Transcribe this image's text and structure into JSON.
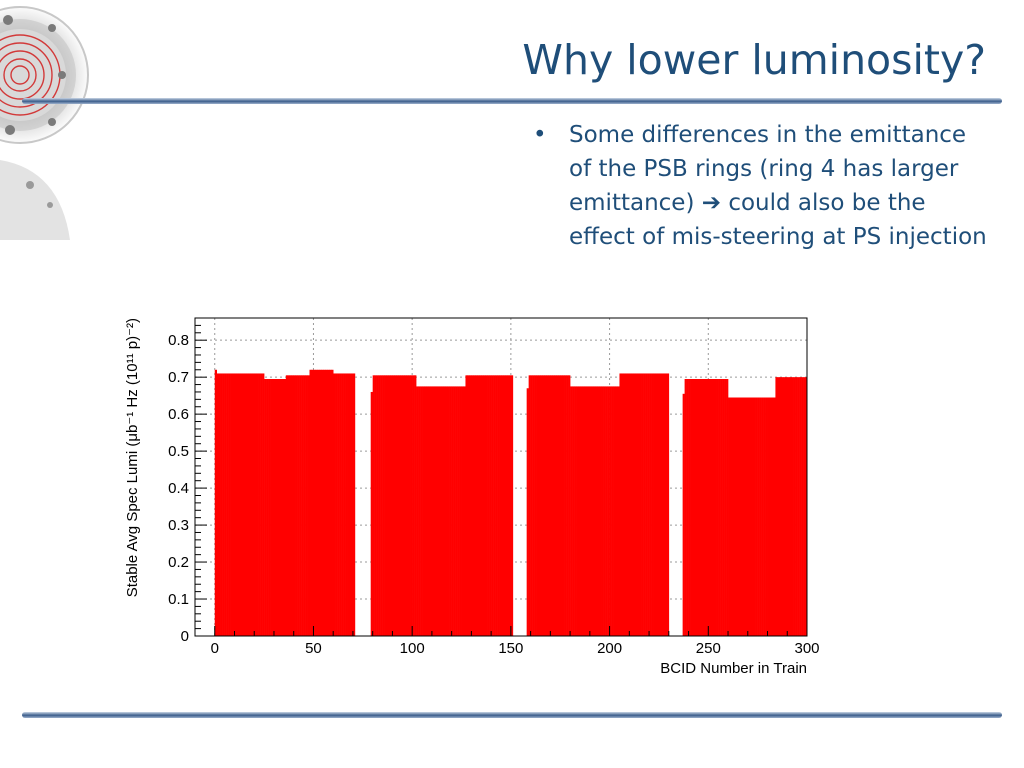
{
  "slide": {
    "title": "Why lower luminosity?",
    "bullets": [
      {
        "before_arrow": "Some differences in the emittance of the PSB rings (ring 4 has larger emittance) ",
        "arrow_icon": "right-arrow-icon",
        "after_arrow": " could also be the effect of mis-steering at PS injection"
      }
    ],
    "bullet_marker": "•",
    "arrow_glyph": "➔"
  },
  "colors": {
    "title": "#1f4e79",
    "bars": "#ff0000",
    "grid": "#9a9a9a"
  },
  "chart_data": {
    "type": "bar",
    "title": "",
    "xlabel": "BCID Number in Train",
    "ylabel": "Stable Avg Spec Lumi (μb⁻¹ Hz (10¹¹ p)⁻²)",
    "xlim": [
      -10,
      300
    ],
    "ylim": [
      0,
      0.86
    ],
    "xticks": [
      0,
      50,
      100,
      150,
      200,
      250,
      300
    ],
    "yticks": [
      0,
      0.1,
      0.2,
      0.3,
      0.4,
      0.5,
      0.6,
      0.7,
      0.8
    ],
    "grid": true,
    "x_bin_width": 1,
    "segments": [
      {
        "x_start": 0,
        "x_end": 71,
        "levels": [
          {
            "x_start": 0,
            "x_end": 1,
            "value": 0.72
          },
          {
            "x_start": 1,
            "x_end": 25,
            "value": 0.71
          },
          {
            "x_start": 25,
            "x_end": 36,
            "value": 0.695
          },
          {
            "x_start": 36,
            "x_end": 48,
            "value": 0.705
          },
          {
            "x_start": 48,
            "x_end": 60,
            "value": 0.72
          },
          {
            "x_start": 60,
            "x_end": 71,
            "value": 0.71
          }
        ]
      },
      {
        "x_start": 79,
        "x_end": 151,
        "levels": [
          {
            "x_start": 79,
            "x_end": 80,
            "value": 0.66
          },
          {
            "x_start": 80,
            "x_end": 102,
            "value": 0.705
          },
          {
            "x_start": 102,
            "x_end": 127,
            "value": 0.675
          },
          {
            "x_start": 127,
            "x_end": 151,
            "value": 0.705
          }
        ]
      },
      {
        "x_start": 158,
        "x_end": 230,
        "levels": [
          {
            "x_start": 158,
            "x_end": 159,
            "value": 0.67
          },
          {
            "x_start": 159,
            "x_end": 180,
            "value": 0.705
          },
          {
            "x_start": 180,
            "x_end": 205,
            "value": 0.675
          },
          {
            "x_start": 205,
            "x_end": 230,
            "value": 0.71
          }
        ]
      },
      {
        "x_start": 237,
        "x_end": 300,
        "levels": [
          {
            "x_start": 237,
            "x_end": 238,
            "value": 0.655
          },
          {
            "x_start": 238,
            "x_end": 260,
            "value": 0.695
          },
          {
            "x_start": 260,
            "x_end": 284,
            "value": 0.645
          },
          {
            "x_start": 284,
            "x_end": 300,
            "value": 0.7
          }
        ]
      }
    ]
  }
}
